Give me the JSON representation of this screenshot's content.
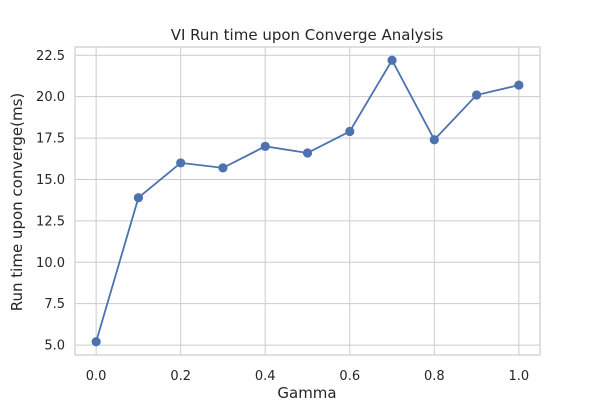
{
  "chart_data": {
    "type": "line",
    "title": "VI Run time upon Converge Analysis",
    "xlabel": "Gamma",
    "ylabel": "Run time upon converge(ms)",
    "x": [
      0.0,
      0.1,
      0.2,
      0.3,
      0.4,
      0.5,
      0.6,
      0.7,
      0.8,
      0.9,
      1.0
    ],
    "series": [
      {
        "values": [
          5.2,
          13.9,
          16.0,
          15.7,
          17.0,
          16.6,
          17.9,
          22.2,
          17.4,
          20.1,
          20.7
        ]
      }
    ],
    "xlim": [
      -0.05,
      1.05
    ],
    "ylim": [
      4.4,
      23.0
    ],
    "xticks": [
      0.0,
      0.2,
      0.4,
      0.6,
      0.8,
      1.0
    ],
    "xtick_labels": [
      "0.0",
      "0.2",
      "0.4",
      "0.6",
      "0.8",
      "1.0"
    ],
    "yticks": [
      5.0,
      7.5,
      10.0,
      12.5,
      15.0,
      17.5,
      20.0,
      22.5
    ],
    "ytick_labels": [
      "5.0",
      "7.5",
      "10.0",
      "12.5",
      "15.0",
      "17.5",
      "20.0",
      "22.5"
    ],
    "grid": true,
    "marker": "circle",
    "line_color": "#4c72b0"
  }
}
